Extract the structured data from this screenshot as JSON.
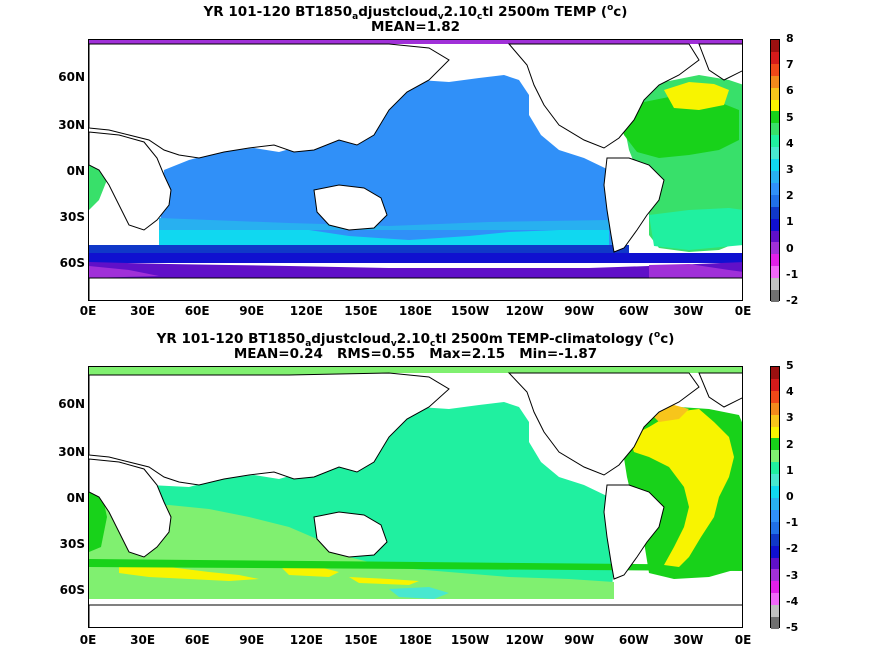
{
  "panels": [
    {
      "title_parts": {
        "lead": "YR 101-120 BT1850",
        "sub1": "a",
        "mid1": "djustcloud",
        "sub2": "v",
        "mid2": "2.10",
        "sub3": "c",
        "tail": "tl 2500m TEMP (",
        "sup": "o",
        "end": "c)"
      },
      "stats": "MEAN=1.82",
      "colorbar": {
        "labels": [
          "8",
          "7",
          "6",
          "5",
          "4",
          "3",
          "2",
          "1",
          "0",
          "-1",
          "-2"
        ],
        "colors": [
          "#9c1010",
          "#d51a1a",
          "#f04818",
          "#f28a1c",
          "#f7c51b",
          "#f8f400",
          "#18d21a",
          "#38e06a",
          "#20f0a0",
          "#48e8d0",
          "#10d8f0",
          "#28b0f0",
          "#3090f8",
          "#2070e8",
          "#1038c8",
          "#1010d0",
          "#6010c8",
          "#a030d8",
          "#e020e8",
          "#f068f8",
          "#c0c0c0",
          "#707070"
        ]
      }
    },
    {
      "title_parts": {
        "lead": "YR 101-120 BT1850",
        "sub1": "a",
        "mid1": "djustcloud",
        "sub2": "v",
        "mid2": "2.10",
        "sub3": "c",
        "tail": "tl 2500m TEMP-climatology (",
        "sup": "o",
        "end": "c)"
      },
      "stats": "MEAN=0.24   RMS=0.55   Max=2.15   Min=-1.87",
      "colorbar": {
        "labels": [
          "5",
          "4",
          "3",
          "2",
          "1",
          "0",
          "-1",
          "-2",
          "-3",
          "-4",
          "-5"
        ],
        "colors": [
          "#9c1010",
          "#d51a1a",
          "#f04818",
          "#f28a1c",
          "#f7c51b",
          "#f8f400",
          "#18d21a",
          "#80f070",
          "#20f0a0",
          "#48e8d0",
          "#10d8f0",
          "#28b0f0",
          "#3090f8",
          "#2070e8",
          "#1038c8",
          "#1010d0",
          "#6010c8",
          "#a030d8",
          "#e020e8",
          "#f068f8",
          "#c0c0c0",
          "#707070"
        ]
      }
    }
  ],
  "axes": {
    "y_ticks": [
      "60N",
      "30N",
      "0N",
      "30S",
      "60S"
    ],
    "x_ticks": [
      "0E",
      "30E",
      "60E",
      "90E",
      "120E",
      "150E",
      "180E",
      "150W",
      "120W",
      "90W",
      "60W",
      "30W",
      "0E"
    ]
  },
  "chart_data": [
    {
      "type": "heatmap",
      "variable": "2500m TEMP",
      "units": "oc",
      "mean": 1.82,
      "colorbar_range": [
        -2,
        8
      ],
      "colorbar_step": 0.5,
      "x_ticks": [
        "0E",
        "30E",
        "60E",
        "90E",
        "120E",
        "150E",
        "180E",
        "150W",
        "120W",
        "90W",
        "60W",
        "30W",
        "0E"
      ],
      "y_ticks": [
        "60N",
        "30N",
        "0N",
        "30S",
        "60S"
      ],
      "regions": [
        {
          "region": "Pacific and Indian basins",
          "value": 1.75
        },
        {
          "region": "Southern Ocean band",
          "value": 0.5
        },
        {
          "region": "Antarctic margin",
          "value": -0.6
        },
        {
          "region": "South Atlantic",
          "value": 2.7
        },
        {
          "region": "North Atlantic",
          "value": 4.5
        }
      ]
    },
    {
      "type": "heatmap",
      "variable": "2500m TEMP-climatology",
      "units": "oc",
      "mean": 0.24,
      "rms": 0.55,
      "max": 2.15,
      "min": -1.87,
      "colorbar_range": [
        -5,
        5
      ],
      "colorbar_step": 0.5,
      "x_ticks": [
        "0E",
        "30E",
        "60E",
        "90E",
        "120E",
        "150E",
        "180E",
        "150W",
        "120W",
        "90W",
        "60W",
        "30W",
        "0E"
      ],
      "y_ticks": [
        "60N",
        "30N",
        "0N",
        "30S",
        "60S"
      ],
      "regions": [
        {
          "region": "Pacific basin",
          "value": 0.2
        },
        {
          "region": "Indian basin",
          "value": 0.6
        },
        {
          "region": "South Atlantic",
          "value": 1.3
        },
        {
          "region": "North Atlantic",
          "value": 1.3
        },
        {
          "region": "Southern Ocean band",
          "value": 0.6
        }
      ]
    }
  ]
}
